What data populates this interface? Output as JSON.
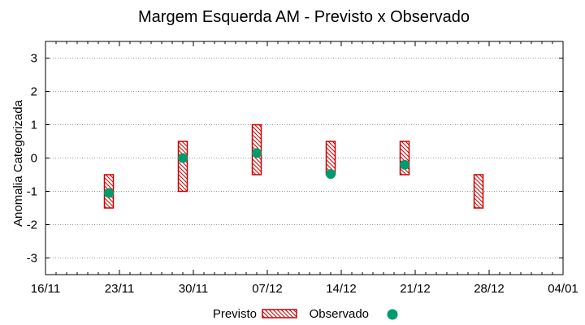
{
  "chart_data": {
    "type": "range-bar-with-points",
    "title": "Margem Esquerda AM - Previsto x Observado",
    "ylabel": "Anomalia Categorizada",
    "xlabel": "",
    "xlim": [
      "2015-11-16",
      "2016-01-04"
    ],
    "ylim": [
      -3.5,
      3.5
    ],
    "x_ticks": [
      "16/11",
      "23/11",
      "30/11",
      "07/12",
      "14/12",
      "21/12",
      "28/12",
      "04/01"
    ],
    "x_tick_dates": [
      "2015-11-16",
      "2015-11-23",
      "2015-11-30",
      "2015-12-07",
      "2015-12-14",
      "2015-12-21",
      "2015-12-28",
      "2016-01-04"
    ],
    "y_ticks": [
      "-3",
      "-2",
      "-1",
      "0",
      "1",
      "2",
      "3"
    ],
    "y_tick_values": [
      -3,
      -2,
      -1,
      0,
      1,
      2,
      3
    ],
    "grid": "horizontal dotted",
    "legend_position": "bottom",
    "series": [
      {
        "name": "Previsto",
        "style": "hatched-box",
        "color": "#cc0000",
        "points": [
          {
            "x": "2015-11-22",
            "low": -1.5,
            "high": -0.5
          },
          {
            "x": "2015-11-29",
            "low": -1.0,
            "high": 0.5
          },
          {
            "x": "2015-12-06",
            "low": -0.5,
            "high": 1.0
          },
          {
            "x": "2015-12-13",
            "low": -0.5,
            "high": 0.5
          },
          {
            "x": "2015-12-20",
            "low": -0.5,
            "high": 0.5
          },
          {
            "x": "2015-12-27",
            "low": -1.5,
            "high": -0.5
          }
        ]
      },
      {
        "name": "Observado",
        "style": "circle",
        "color": "#009a6e",
        "points": [
          {
            "x": "2015-11-22",
            "y": -1.05
          },
          {
            "x": "2015-11-29",
            "y": 0.0
          },
          {
            "x": "2015-12-06",
            "y": 0.15
          },
          {
            "x": "2015-12-13",
            "y": -0.48
          },
          {
            "x": "2015-12-20",
            "y": -0.2
          }
        ]
      }
    ]
  }
}
